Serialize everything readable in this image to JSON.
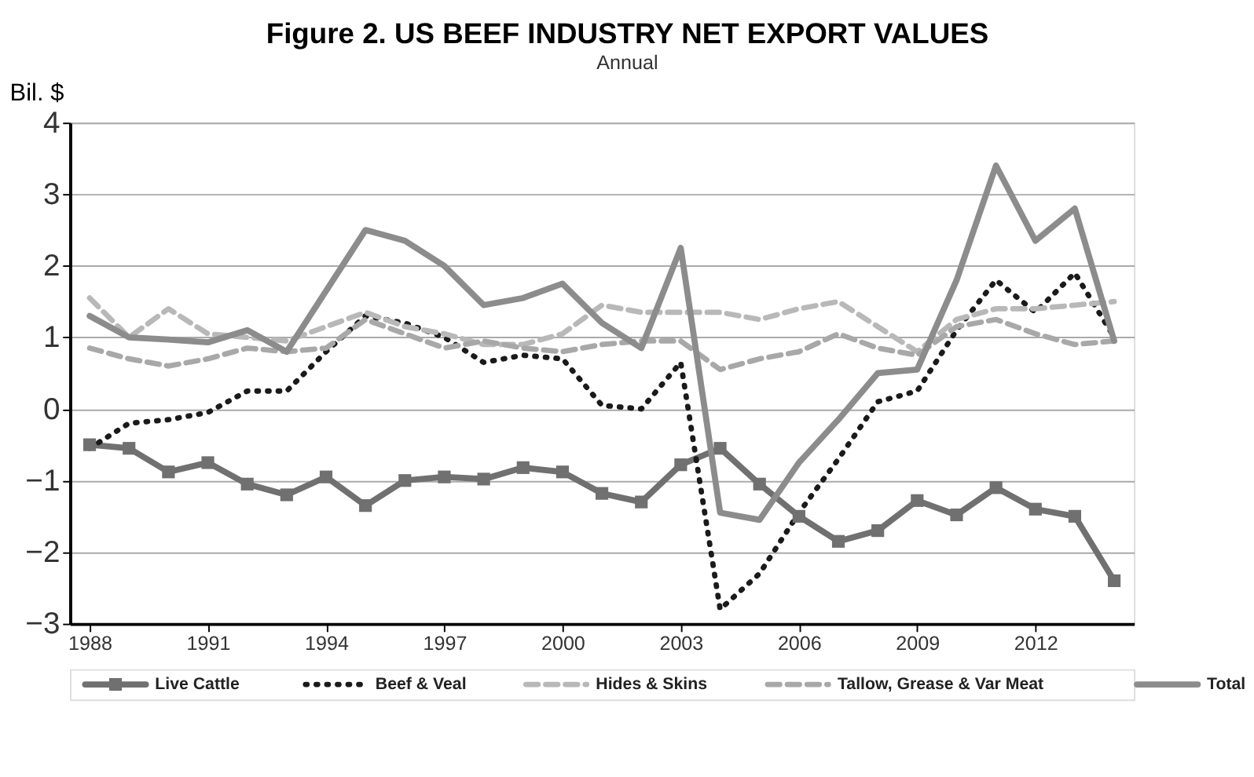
{
  "chart_data": {
    "type": "line",
    "title": "Figure 2. US BEEF INDUSTRY NET EXPORT VALUES",
    "subtitle": "Annual",
    "ylabel": "Bil. $",
    "x": [
      1988,
      1989,
      1990,
      1991,
      1992,
      1993,
      1994,
      1995,
      1996,
      1997,
      1998,
      1999,
      2000,
      2001,
      2002,
      2003,
      2004,
      2005,
      2006,
      2007,
      2008,
      2009,
      2010,
      2011,
      2012,
      2013,
      2014
    ],
    "xlim": [
      1987.5,
      2014.5
    ],
    "xticks": [
      1988,
      1991,
      1994,
      1997,
      2000,
      2003,
      2006,
      2009,
      2012
    ],
    "ylim": [
      -3,
      4
    ],
    "yticks": [
      -3,
      -2,
      -1,
      0,
      1,
      2,
      3,
      4
    ],
    "grid": "y",
    "legend": "bottom",
    "series": [
      {
        "name": "Live Cattle",
        "color": "#707070",
        "marker": "square",
        "line_style": "solid",
        "values": [
          -0.5,
          -0.55,
          -0.88,
          -0.75,
          -1.05,
          -1.2,
          -0.95,
          -1.35,
          -1.0,
          -0.95,
          -0.98,
          -0.82,
          -0.88,
          -1.18,
          -1.3,
          -0.78,
          -0.55,
          -1.05,
          -1.5,
          -1.85,
          -1.7,
          -1.28,
          -1.48,
          -1.1,
          -1.4,
          -1.5,
          -2.4
        ]
      },
      {
        "name": "Beef & Veal",
        "color": "#1a1a1a",
        "marker": "none",
        "line_style": "dotted",
        "values": [
          -0.55,
          -0.2,
          -0.15,
          -0.05,
          0.25,
          0.25,
          0.8,
          1.3,
          1.2,
          1.0,
          0.65,
          0.75,
          0.7,
          0.05,
          0.0,
          0.65,
          -2.8,
          -2.3,
          -1.45,
          -0.7,
          0.1,
          0.25,
          1.1,
          1.8,
          1.35,
          1.9,
          1.0
        ]
      },
      {
        "name": "Hides & Skins",
        "color": "#b8b8b8",
        "marker": "none",
        "line_style": "dashed",
        "values": [
          1.55,
          1.0,
          1.4,
          1.05,
          1.0,
          0.95,
          1.15,
          1.35,
          1.15,
          1.05,
          0.9,
          0.9,
          1.05,
          1.45,
          1.35,
          1.35,
          1.35,
          1.25,
          1.4,
          1.5,
          1.15,
          0.8,
          1.25,
          1.4,
          1.4,
          1.45,
          1.5
        ]
      },
      {
        "name": "Tallow, Grease & Var Meat",
        "color": "#a8a8a8",
        "marker": "none",
        "line_style": "dashed",
        "values": [
          0.85,
          0.7,
          0.6,
          0.7,
          0.85,
          0.8,
          0.85,
          1.25,
          1.05,
          0.85,
          0.95,
          0.85,
          0.8,
          0.9,
          0.95,
          0.95,
          0.55,
          0.7,
          0.8,
          1.05,
          0.85,
          0.75,
          1.15,
          1.25,
          1.05,
          0.9,
          0.95
        ]
      },
      {
        "name": "Total",
        "color": "#8c8c8c",
        "marker": "none",
        "line_style": "solid",
        "values": [
          1.3,
          1.0,
          0.97,
          0.93,
          1.1,
          0.8,
          1.65,
          2.5,
          2.35,
          2.0,
          1.45,
          1.55,
          1.75,
          1.2,
          0.85,
          2.25,
          -1.45,
          -1.55,
          -0.75,
          -0.15,
          0.5,
          0.55,
          1.8,
          3.4,
          2.35,
          2.8,
          0.95
        ]
      }
    ]
  }
}
